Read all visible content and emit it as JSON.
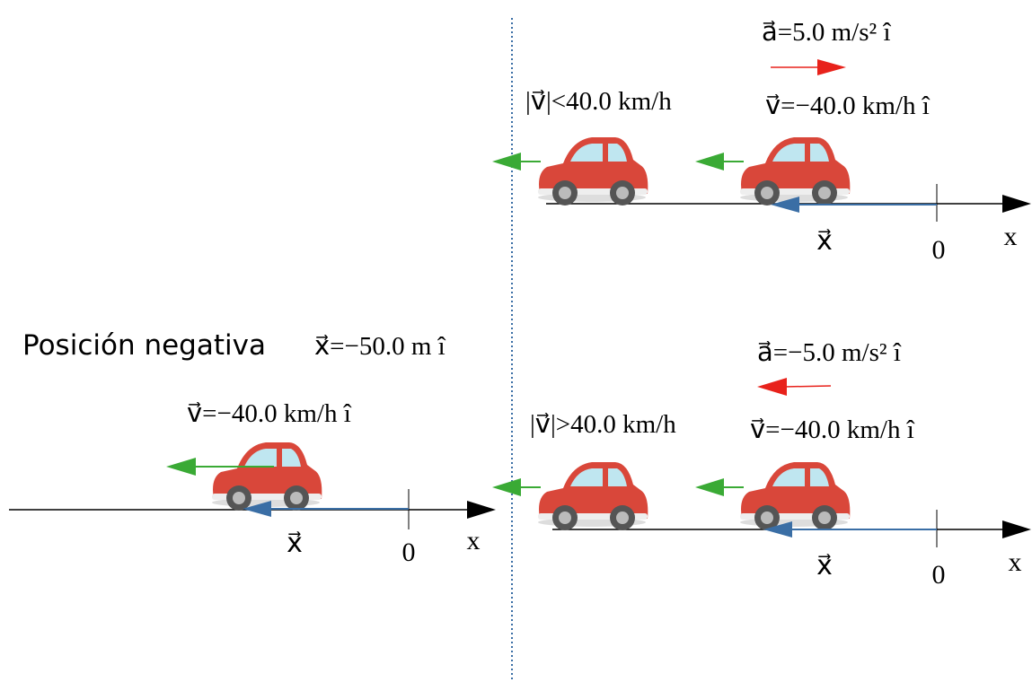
{
  "left": {
    "title": "Posición negativa",
    "position": "x⃗=−50.0 m î",
    "velocity": "v⃗=−40.0 km/h î",
    "axis": {
      "position_label": "x⃗",
      "origin": "0",
      "axis_name": "x"
    }
  },
  "top_right": {
    "acceleration": "a⃗=5.0 m/s² î",
    "speed": "|v⃗|<40.0 km/h",
    "velocity": "v⃗=−40.0 km/h î",
    "axis": {
      "position_label": "x⃗",
      "origin": "0",
      "axis_name": "x"
    }
  },
  "bottom_right": {
    "acceleration": "a⃗=−5.0 m/s² î",
    "speed": "|v⃗|>40.0 km/h",
    "velocity": "v⃗=−40.0 km/h î",
    "axis": {
      "position_label": "x⃗",
      "origin": "0",
      "axis_name": "x"
    }
  }
}
